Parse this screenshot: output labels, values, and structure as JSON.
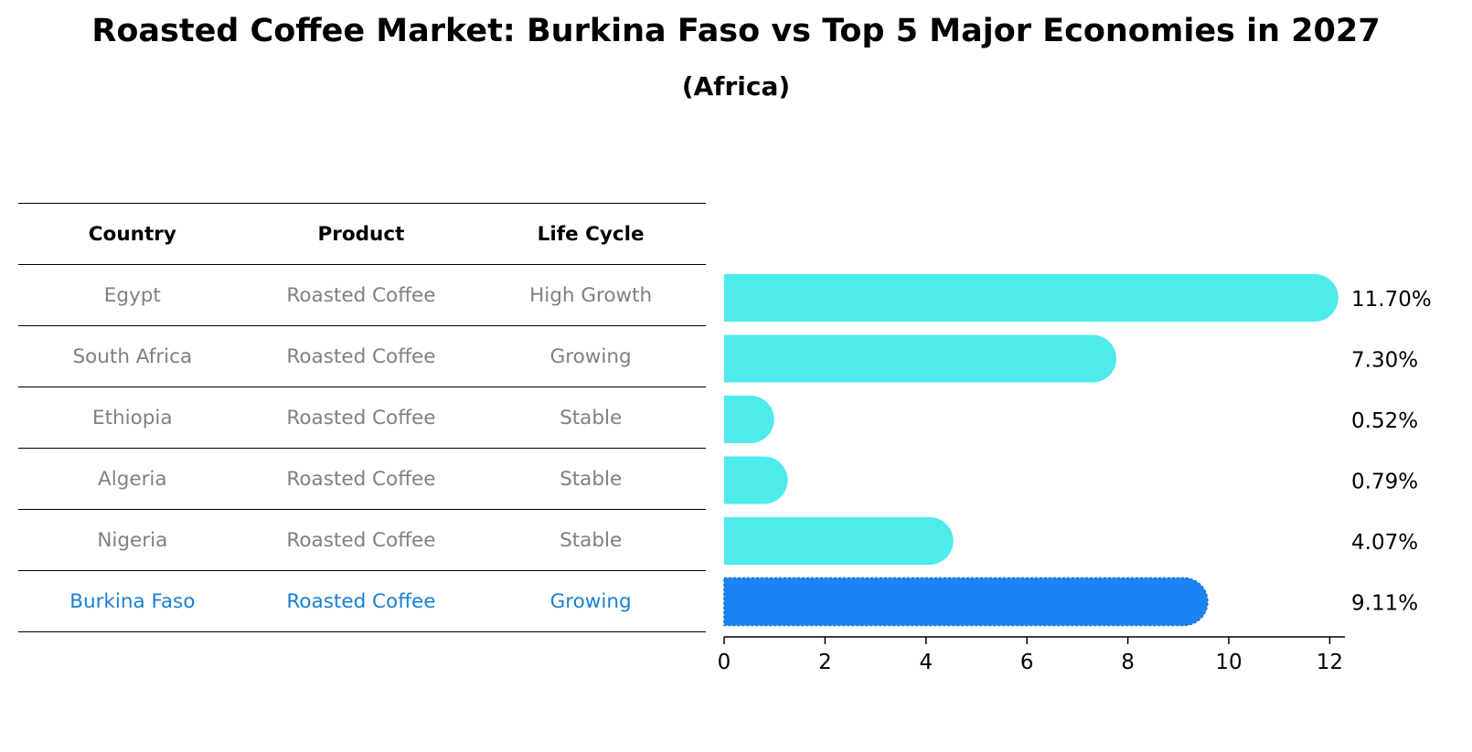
{
  "title": "Roasted Coffee Market: Burkina Faso vs Top 5 Major Economies in 2027",
  "subtitle": "(Africa)",
  "table": {
    "headers": [
      "Country",
      "Product",
      "Life Cycle"
    ],
    "rows": [
      [
        "Egypt",
        "Roasted Coffee",
        "High Growth"
      ],
      [
        "South Africa",
        "Roasted Coffee",
        "Growing"
      ],
      [
        "Ethiopia",
        "Roasted Coffee",
        "Stable"
      ],
      [
        "Algeria",
        "Roasted Coffee",
        "Stable"
      ],
      [
        "Nigeria",
        "Roasted Coffee",
        "Stable"
      ],
      [
        "Burkina Faso",
        "Roasted Coffee",
        "Growing"
      ]
    ],
    "highlight_country": "Burkina Faso"
  },
  "colors": {
    "bar": "#4debeb",
    "highlight": "#1a84f2",
    "muted_text": "#808080",
    "highlight_text": "#1a7fd4"
  },
  "chart_data": {
    "type": "bar",
    "orientation": "horizontal",
    "categories": [
      "Egypt",
      "South Africa",
      "Ethiopia",
      "Algeria",
      "Nigeria",
      "Burkina Faso"
    ],
    "values": [
      11.7,
      7.3,
      0.52,
      0.79,
      4.07,
      9.11
    ],
    "value_labels": [
      "11.70%",
      "7.30%",
      "0.52%",
      "0.79%",
      "4.07%",
      "9.11%"
    ],
    "xlim": [
      0,
      12.3
    ],
    "xticks": [
      0,
      2,
      4,
      6,
      8,
      10,
      12
    ],
    "highlight": "Burkina Faso",
    "grid": false
  }
}
